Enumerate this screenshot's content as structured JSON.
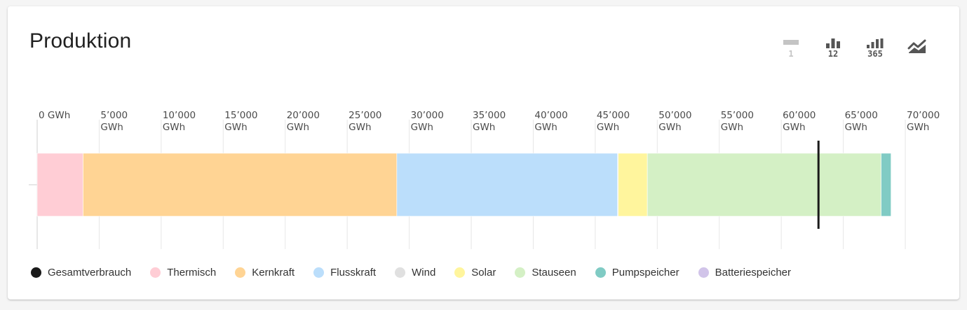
{
  "card": {
    "title": "Produktion"
  },
  "toolbar": {
    "buttons": [
      {
        "name": "daily-view-button",
        "icon": "day-bar-icon",
        "label": "1",
        "disabled": true
      },
      {
        "name": "monthly-view-button",
        "icon": "bar-chart-icon",
        "label": "12",
        "disabled": false
      },
      {
        "name": "yearly-view-button",
        "icon": "bar-chart-icon",
        "label": "365",
        "disabled": false
      },
      {
        "name": "trend-view-button",
        "icon": "area-trend-icon",
        "label": "",
        "disabled": false
      }
    ]
  },
  "chart_data": {
    "type": "bar",
    "orientation": "horizontal",
    "stacked": true,
    "unit": "GWh",
    "xlim": [
      0,
      70000
    ],
    "x_ticks": [
      0,
      5000,
      10000,
      15000,
      20000,
      25000,
      30000,
      35000,
      40000,
      45000,
      50000,
      55000,
      60000,
      65000,
      70000
    ],
    "x_tick_labels": [
      [
        "0 GWh"
      ],
      [
        "5’000",
        "GWh"
      ],
      [
        "10’000",
        "GWh"
      ],
      [
        "15’000",
        "GWh"
      ],
      [
        "20’000",
        "GWh"
      ],
      [
        "25’000",
        "GWh"
      ],
      [
        "30’000",
        "GWh"
      ],
      [
        "35’000",
        "GWh"
      ],
      [
        "40’000",
        "GWh"
      ],
      [
        "45’000",
        "GWh"
      ],
      [
        "50’000",
        "GWh"
      ],
      [
        "55’000",
        "GWh"
      ],
      [
        "60’000",
        "GWh"
      ],
      [
        "65’000",
        "GWh"
      ],
      [
        "70’000",
        "GWh"
      ]
    ],
    "axis_position": "top",
    "grid": true,
    "legend_position": "bottom-left",
    "series": [
      {
        "name": "Thermisch",
        "value": 3700,
        "color": "#ffcdd5"
      },
      {
        "name": "Kernkraft",
        "value": 25300,
        "color": "#ffd494"
      },
      {
        "name": "Flusskraft",
        "value": 17800,
        "color": "#bbdefb"
      },
      {
        "name": "Wind",
        "value": 50,
        "color": "#e0e0e0"
      },
      {
        "name": "Solar",
        "value": 2350,
        "color": "#fff59d"
      },
      {
        "name": "Stauseen",
        "value": 18850,
        "color": "#d4f0c5"
      },
      {
        "name": "Pumpspeicher",
        "value": 800,
        "color": "#80cbc4"
      },
      {
        "name": "Batteriespeicher",
        "value": 0,
        "color": "#d1c4e9"
      }
    ],
    "marker": {
      "name": "Gesamtverbrauch",
      "value": 63000,
      "color": "#1a1a1a"
    }
  },
  "legend": [
    {
      "label": "Gesamtverbrauch",
      "color": "#1a1a1a"
    },
    {
      "label": "Thermisch",
      "color": "#ffcdd5"
    },
    {
      "label": "Kernkraft",
      "color": "#ffd494"
    },
    {
      "label": "Flusskraft",
      "color": "#bbdefb"
    },
    {
      "label": "Wind",
      "color": "#e0e0e0"
    },
    {
      "label": "Solar",
      "color": "#fff59d"
    },
    {
      "label": "Stauseen",
      "color": "#d4f0c5"
    },
    {
      "label": "Pumpspeicher",
      "color": "#80cbc4"
    },
    {
      "label": "Batteriespeicher",
      "color": "#d1c4e9"
    }
  ]
}
